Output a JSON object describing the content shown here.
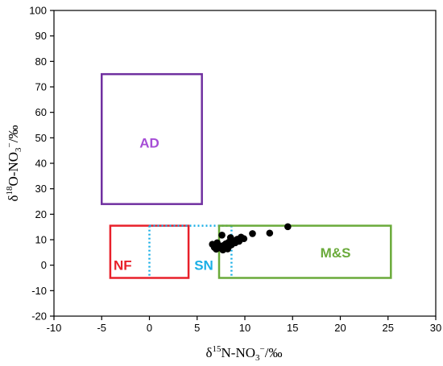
{
  "chart_data": {
    "type": "scatter",
    "title": "",
    "xlabel": {
      "delta": "δ",
      "mass": "15",
      "species": "N-NO",
      "subscript": "3",
      "charge": "−",
      "unit": "/‰"
    },
    "ylabel": {
      "delta": "δ",
      "mass": "18",
      "species": "O-NO",
      "subscript": "3",
      "charge": "−",
      "unit": "/‰"
    },
    "xlim": [
      -10,
      30
    ],
    "ylim": [
      -20,
      100
    ],
    "xticks": [
      -10,
      -5,
      0,
      5,
      10,
      15,
      20,
      25,
      30
    ],
    "yticks": [
      -20,
      -10,
      0,
      10,
      20,
      30,
      40,
      50,
      60,
      70,
      80,
      90,
      100
    ],
    "grid": false,
    "regions": [
      {
        "label": "AD",
        "x": [
          -5,
          5.5
        ],
        "y": [
          24,
          75
        ],
        "color": "#7030A0",
        "label_color": "#A64DD6",
        "style": "solid"
      },
      {
        "label": "NF",
        "x": [
          -4.1,
          4.1
        ],
        "y": [
          -5,
          15.5
        ],
        "color": "#E8202A",
        "label_color": "#E8202A",
        "style": "solid"
      },
      {
        "label": "SN",
        "x": [
          0,
          8.6
        ],
        "y": [
          -5,
          15.5
        ],
        "color": "#1AAFE6",
        "label_color": "#1AAFE6",
        "style": "dotted"
      },
      {
        "label": "M&S",
        "x": [
          7.3,
          25.3
        ],
        "y": [
          -5,
          15.5
        ],
        "color": "#6AAA3A",
        "label_color": "#6AAA3A",
        "style": "solid"
      }
    ],
    "region_label_positions": [
      {
        "label": "AD",
        "x": 0,
        "y": 48
      },
      {
        "label": "NF",
        "x": -2.8,
        "y": 0
      },
      {
        "label": "SN",
        "x": 5.7,
        "y": 0
      },
      {
        "label": "M&S",
        "x": 19.5,
        "y": 5
      }
    ],
    "series": [
      {
        "marker_color": "#000000",
        "points": [
          [
            6.6,
            8.2
          ],
          [
            6.8,
            7.0
          ],
          [
            7.0,
            6.3
          ],
          [
            7.1,
            8.8
          ],
          [
            7.3,
            6.8
          ],
          [
            7.5,
            7.5
          ],
          [
            7.6,
            11.8
          ],
          [
            7.7,
            6.0
          ],
          [
            7.8,
            7.8
          ],
          [
            7.9,
            6.6
          ],
          [
            8.0,
            8.4
          ],
          [
            8.1,
            7.1
          ],
          [
            8.2,
            6.4
          ],
          [
            8.3,
            9.0
          ],
          [
            8.4,
            7.6
          ],
          [
            8.5,
            10.8
          ],
          [
            8.6,
            8.0
          ],
          [
            8.8,
            9.6
          ],
          [
            9.0,
            8.8
          ],
          [
            9.2,
            10.2
          ],
          [
            9.4,
            9.4
          ],
          [
            9.6,
            11.0
          ],
          [
            9.9,
            10.4
          ],
          [
            10.8,
            12.4
          ],
          [
            12.6,
            12.6
          ],
          [
            14.5,
            15.1
          ]
        ]
      }
    ]
  }
}
